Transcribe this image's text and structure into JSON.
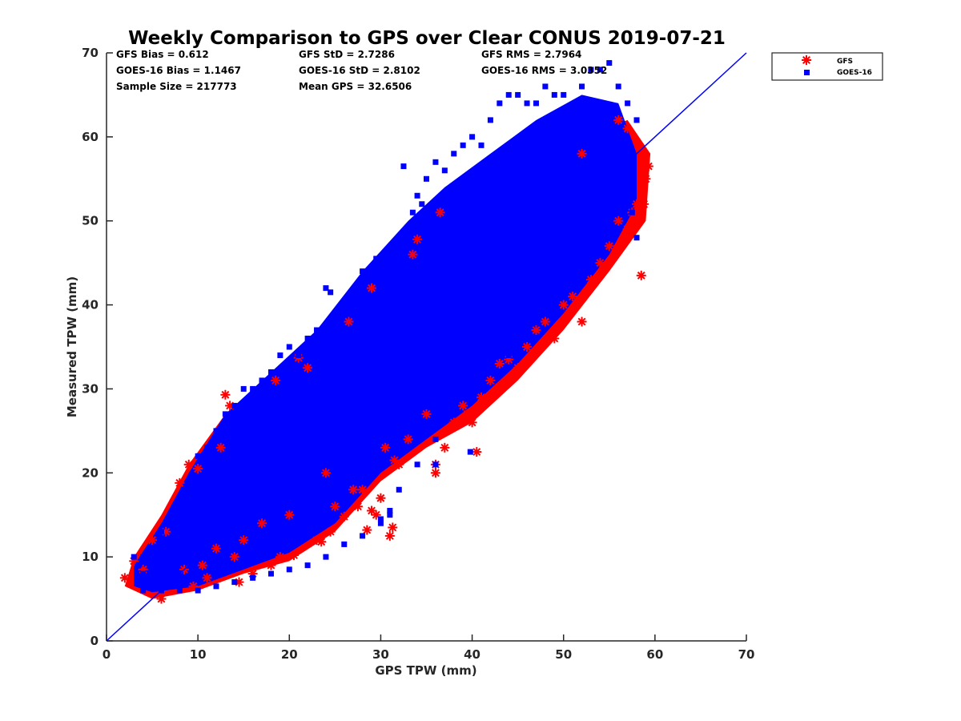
{
  "chart_data": {
    "type": "scatter",
    "title": "Weekly Comparison to GPS over Clear CONUS 2019-07-21",
    "xlabel": "GPS TPW (mm)",
    "ylabel": "Measured TPW (mm)",
    "xlim": [
      0,
      70
    ],
    "ylim": [
      0,
      70
    ],
    "xticks": [
      "0",
      "10",
      "20",
      "30",
      "40",
      "50",
      "60",
      "70"
    ],
    "yticks": [
      "0",
      "10",
      "20",
      "30",
      "40",
      "50",
      "60",
      "70"
    ],
    "grid": false,
    "legend_position": "top-right, outside plot",
    "legend": [
      {
        "label": "GFS",
        "marker": "asterisk",
        "color": "#ff0000"
      },
      {
        "label": "GOES-16",
        "marker": "square",
        "color": "#0000ff"
      }
    ],
    "stats": [
      [
        "GFS Bias = 0.612",
        "GFS StD = 2.7286",
        "GFS RMS = 2.7964"
      ],
      [
        "GOES-16 Bias = 1.1467",
        "GOES-16 StD = 2.8102",
        "GOES-16 RMS = 3.0352"
      ],
      [
        "Sample Size = 217773",
        "Mean GPS = 32.6506",
        ""
      ]
    ],
    "reference_line": {
      "x": [
        0,
        70
      ],
      "y": [
        0,
        70
      ],
      "color": "#0000ff"
    },
    "series": [
      {
        "name": "GFS",
        "color": "#ff0000",
        "marker": "asterisk",
        "points": [
          [
            2,
            7.5
          ],
          [
            3,
            9.5
          ],
          [
            4,
            8.5
          ],
          [
            5,
            12
          ],
          [
            6,
            5
          ],
          [
            6.5,
            13
          ],
          [
            8,
            18.8
          ],
          [
            8.5,
            8.5
          ],
          [
            9,
            21
          ],
          [
            9.5,
            6.5
          ],
          [
            10,
            20.5
          ],
          [
            10.5,
            9
          ],
          [
            11,
            7.5
          ],
          [
            12,
            11
          ],
          [
            12.5,
            23
          ],
          [
            13,
            29.3
          ],
          [
            13.5,
            28
          ],
          [
            14,
            10
          ],
          [
            14.5,
            7
          ],
          [
            15,
            12
          ],
          [
            16,
            8
          ],
          [
            17,
            14
          ],
          [
            18,
            9
          ],
          [
            18.5,
            31
          ],
          [
            19,
            10
          ],
          [
            20,
            15
          ],
          [
            20.5,
            10.2
          ],
          [
            21,
            33.7
          ],
          [
            22,
            32.5
          ],
          [
            23,
            12
          ],
          [
            23.5,
            11.8
          ],
          [
            24,
            20
          ],
          [
            24.5,
            13
          ],
          [
            25,
            16
          ],
          [
            26,
            14.8
          ],
          [
            26.5,
            38
          ],
          [
            27,
            18
          ],
          [
            27.5,
            16
          ],
          [
            28,
            18
          ],
          [
            28.5,
            13.2
          ],
          [
            29,
            15.5
          ],
          [
            29.5,
            15
          ],
          [
            29,
            42
          ],
          [
            30,
            17
          ],
          [
            30.5,
            23
          ],
          [
            31,
            12.5
          ],
          [
            31.3,
            13.5
          ],
          [
            31.5,
            21.5
          ],
          [
            32,
            21
          ],
          [
            33,
            24
          ],
          [
            33.5,
            46
          ],
          [
            34,
            47.8
          ],
          [
            35,
            27
          ],
          [
            36,
            20
          ],
          [
            36,
            21
          ],
          [
            36.5,
            51
          ],
          [
            37,
            23
          ],
          [
            38,
            26
          ],
          [
            39,
            28
          ],
          [
            39.5,
            27
          ],
          [
            40,
            26
          ],
          [
            40.5,
            22.5
          ],
          [
            41,
            29
          ],
          [
            42,
            31
          ],
          [
            43,
            33
          ],
          [
            44,
            33.5
          ],
          [
            45,
            32.5
          ],
          [
            46,
            35
          ],
          [
            47,
            37
          ],
          [
            48,
            38
          ],
          [
            49,
            36
          ],
          [
            50,
            40
          ],
          [
            51,
            41
          ],
          [
            52,
            38
          ],
          [
            53,
            43
          ],
          [
            54,
            45
          ],
          [
            55,
            47
          ],
          [
            56,
            50
          ],
          [
            57,
            49
          ],
          [
            57.5,
            51
          ],
          [
            58,
            52
          ],
          [
            58.5,
            43.5
          ],
          [
            58.8,
            52
          ],
          [
            59.3,
            56.5
          ],
          [
            59,
            55
          ],
          [
            57,
            61
          ],
          [
            56,
            62
          ],
          [
            52,
            58
          ]
        ]
      },
      {
        "name": "GOES-16",
        "color": "#0000ff",
        "marker": "square",
        "points": [
          [
            3,
            10
          ],
          [
            3.5,
            9
          ],
          [
            4,
            8
          ],
          [
            4,
            10
          ],
          [
            5,
            9
          ],
          [
            6,
            13
          ],
          [
            7,
            15
          ],
          [
            8,
            16
          ],
          [
            9,
            19
          ],
          [
            10,
            22
          ],
          [
            11,
            23
          ],
          [
            12,
            25
          ],
          [
            13,
            27
          ],
          [
            14,
            28
          ],
          [
            15,
            30
          ],
          [
            16,
            30
          ],
          [
            17,
            31
          ],
          [
            18,
            32
          ],
          [
            19,
            34
          ],
          [
            20,
            35
          ],
          [
            21,
            34
          ],
          [
            22,
            36
          ],
          [
            23,
            37
          ],
          [
            24,
            42
          ],
          [
            24.5,
            41.5
          ],
          [
            25,
            39
          ],
          [
            26,
            39
          ],
          [
            27,
            40
          ],
          [
            28,
            44
          ],
          [
            29,
            44
          ],
          [
            29.5,
            45.5
          ],
          [
            31,
            45
          ],
          [
            32,
            46
          ],
          [
            32.5,
            56.5
          ],
          [
            33,
            49
          ],
          [
            33.5,
            51
          ],
          [
            34,
            53
          ],
          [
            34.5,
            52
          ],
          [
            35,
            55
          ],
          [
            36,
            57
          ],
          [
            37,
            56
          ],
          [
            38,
            58
          ],
          [
            39,
            59
          ],
          [
            40,
            60
          ],
          [
            41,
            59
          ],
          [
            42,
            62
          ],
          [
            43,
            64
          ],
          [
            44,
            65
          ],
          [
            45,
            65
          ],
          [
            46,
            64
          ],
          [
            47,
            64
          ],
          [
            48,
            66
          ],
          [
            49,
            65
          ],
          [
            50,
            65
          ],
          [
            51,
            62
          ],
          [
            52,
            66
          ],
          [
            53,
            68
          ],
          [
            54,
            68
          ],
          [
            55,
            68.8
          ],
          [
            56,
            66
          ],
          [
            57,
            64
          ],
          [
            58,
            62
          ],
          [
            58,
            48
          ],
          [
            57.5,
            51
          ],
          [
            56,
            55
          ],
          [
            54,
            50
          ],
          [
            52,
            45
          ],
          [
            50,
            42
          ],
          [
            48,
            40
          ],
          [
            46,
            37
          ],
          [
            44,
            34
          ],
          [
            42,
            32
          ],
          [
            40,
            29
          ],
          [
            38,
            27
          ],
          [
            36,
            24
          ],
          [
            34,
            21
          ],
          [
            32,
            18
          ],
          [
            31,
            15.5
          ],
          [
            30,
            14
          ],
          [
            28,
            12.5
          ],
          [
            26,
            11.5
          ],
          [
            24,
            10
          ],
          [
            22,
            9
          ],
          [
            20,
            8.5
          ],
          [
            18,
            8
          ],
          [
            16,
            7.5
          ],
          [
            14,
            7
          ],
          [
            12,
            6.5
          ],
          [
            10,
            6
          ],
          [
            8,
            6
          ],
          [
            6,
            6
          ],
          [
            4,
            6
          ],
          [
            39.8,
            22.5
          ],
          [
            36,
            21
          ],
          [
            31,
            15
          ],
          [
            30,
            14.5
          ]
        ]
      }
    ],
    "cloud": {
      "points": 3,
      "note": "dense overlapping sample cloud along the diagonal"
    }
  }
}
